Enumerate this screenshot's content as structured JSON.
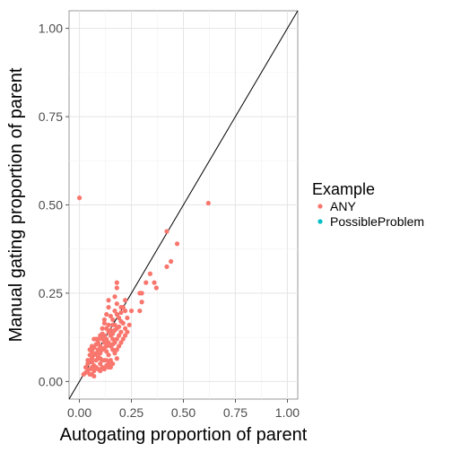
{
  "chart_data": {
    "type": "scatter",
    "xlabel": "Autogating proportion of parent",
    "ylabel": "Manual gating proportion of parent",
    "xlim": [
      -0.05,
      1.05
    ],
    "ylim": [
      -0.05,
      1.05
    ],
    "x_ticks": [
      "0.00",
      "0.25",
      "0.50",
      "0.75",
      "1.00"
    ],
    "y_ticks": [
      "0.00",
      "0.25",
      "0.50",
      "0.75",
      "1.00"
    ],
    "grid": true,
    "reference_line": {
      "slope": 1,
      "intercept": 0,
      "color": "#000000"
    },
    "legend": {
      "title": "Example",
      "position": "right",
      "entries": [
        {
          "name": "ANY",
          "color": "#F8766D"
        },
        {
          "name": "PossibleProblem",
          "color": "#00BFC4"
        }
      ]
    },
    "series": [
      {
        "name": "ANY",
        "color": "#F8766D",
        "points": [
          [
            0.0,
            0.52
          ],
          [
            0.62,
            0.505
          ],
          [
            0.42,
            0.425
          ],
          [
            0.47,
            0.39
          ],
          [
            0.44,
            0.34
          ],
          [
            0.42,
            0.325
          ],
          [
            0.34,
            0.305
          ],
          [
            0.36,
            0.28
          ],
          [
            0.37,
            0.265
          ],
          [
            0.32,
            0.28
          ],
          [
            0.29,
            0.25
          ],
          [
            0.3,
            0.25
          ],
          [
            0.3,
            0.225
          ],
          [
            0.25,
            0.2
          ],
          [
            0.29,
            0.2
          ],
          [
            0.18,
            0.28
          ],
          [
            0.18,
            0.265
          ],
          [
            0.22,
            0.23
          ],
          [
            0.21,
            0.21
          ],
          [
            0.22,
            0.2
          ],
          [
            0.2,
            0.21
          ],
          [
            0.18,
            0.22
          ],
          [
            0.17,
            0.2
          ],
          [
            0.18,
            0.19
          ],
          [
            0.19,
            0.18
          ],
          [
            0.2,
            0.17
          ],
          [
            0.21,
            0.165
          ],
          [
            0.16,
            0.175
          ],
          [
            0.14,
            0.21
          ],
          [
            0.14,
            0.23
          ],
          [
            0.15,
            0.185
          ],
          [
            0.16,
            0.16
          ],
          [
            0.17,
            0.145
          ],
          [
            0.18,
            0.15
          ],
          [
            0.19,
            0.155
          ],
          [
            0.2,
            0.14
          ],
          [
            0.21,
            0.12
          ],
          [
            0.22,
            0.13
          ],
          [
            0.23,
            0.14
          ],
          [
            0.24,
            0.16
          ],
          [
            0.19,
            0.1
          ],
          [
            0.17,
            0.11
          ],
          [
            0.16,
            0.12
          ],
          [
            0.15,
            0.13
          ],
          [
            0.14,
            0.14
          ],
          [
            0.13,
            0.15
          ],
          [
            0.12,
            0.165
          ],
          [
            0.11,
            0.15
          ],
          [
            0.12,
            0.13
          ],
          [
            0.13,
            0.12
          ],
          [
            0.14,
            0.11
          ],
          [
            0.15,
            0.1
          ],
          [
            0.16,
            0.09
          ],
          [
            0.17,
            0.08
          ],
          [
            0.18,
            0.065
          ],
          [
            0.12,
            0.11
          ],
          [
            0.11,
            0.12
          ],
          [
            0.1,
            0.1
          ],
          [
            0.09,
            0.12
          ],
          [
            0.08,
            0.12
          ],
          [
            0.07,
            0.12
          ],
          [
            0.08,
            0.105
          ],
          [
            0.09,
            0.09
          ],
          [
            0.1,
            0.08
          ],
          [
            0.11,
            0.09
          ],
          [
            0.12,
            0.095
          ],
          [
            0.13,
            0.085
          ],
          [
            0.14,
            0.075
          ],
          [
            0.15,
            0.06
          ],
          [
            0.11,
            0.06
          ],
          [
            0.1,
            0.05
          ],
          [
            0.09,
            0.07
          ],
          [
            0.08,
            0.06
          ],
          [
            0.07,
            0.075
          ],
          [
            0.06,
            0.065
          ],
          [
            0.06,
            0.085
          ],
          [
            0.05,
            0.09
          ],
          [
            0.05,
            0.06
          ],
          [
            0.04,
            0.05
          ],
          [
            0.05,
            0.035
          ],
          [
            0.06,
            0.04
          ],
          [
            0.07,
            0.045
          ],
          [
            0.08,
            0.04
          ],
          [
            0.09,
            0.035
          ],
          [
            0.1,
            0.03
          ],
          [
            0.11,
            0.04
          ],
          [
            0.12,
            0.035
          ],
          [
            0.13,
            0.045
          ],
          [
            0.14,
            0.04
          ],
          [
            0.03,
            0.025
          ],
          [
            0.04,
            0.03
          ],
          [
            0.05,
            0.02
          ],
          [
            0.06,
            0.02
          ],
          [
            0.07,
            0.015
          ],
          [
            0.02,
            0.02
          ],
          [
            0.03,
            0.04
          ],
          [
            0.04,
            0.06
          ],
          [
            0.05,
            0.075
          ],
          [
            0.06,
            0.1
          ],
          [
            0.07,
            0.095
          ],
          [
            0.09,
            0.065
          ],
          [
            0.1,
            0.13
          ],
          [
            0.11,
            0.135
          ],
          [
            0.12,
            0.175
          ],
          [
            0.13,
            0.19
          ],
          [
            0.14,
            0.16
          ],
          [
            0.15,
            0.145
          ],
          [
            0.16,
            0.135
          ],
          [
            0.17,
            0.16
          ],
          [
            0.18,
            0.12
          ],
          [
            0.19,
            0.13
          ],
          [
            0.2,
            0.11
          ],
          [
            0.22,
            0.15
          ],
          [
            0.12,
            0.06
          ],
          [
            0.13,
            0.06
          ],
          [
            0.14,
            0.05
          ],
          [
            0.16,
            0.05
          ],
          [
            0.15,
            0.04
          ],
          [
            0.08,
            0.08
          ],
          [
            0.09,
            0.11
          ],
          [
            0.1,
            0.065
          ],
          [
            0.07,
            0.03
          ],
          [
            0.06,
            0.055
          ],
          [
            0.13,
            0.1
          ],
          [
            0.16,
            0.105
          ],
          [
            0.18,
            0.09
          ],
          [
            0.2,
            0.195
          ],
          [
            0.17,
            0.24
          ],
          [
            0.23,
            0.18
          ]
        ]
      }
    ]
  }
}
